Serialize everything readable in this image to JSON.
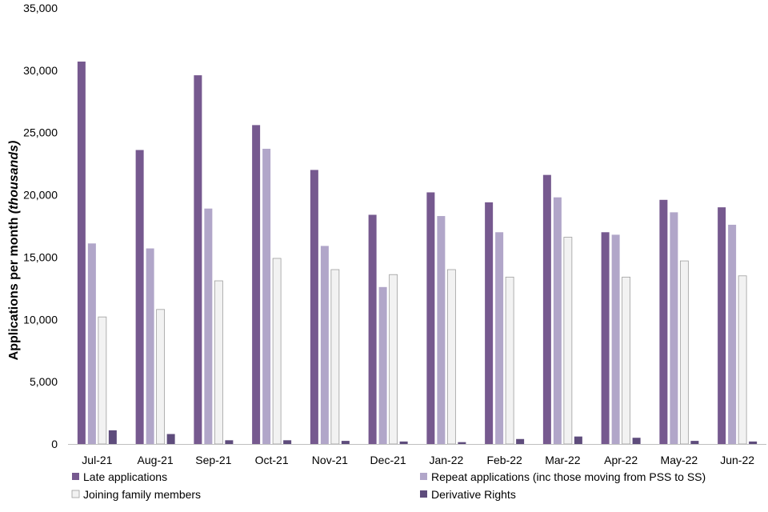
{
  "chart_data": {
    "type": "bar",
    "ylabel_main": "Applications per month ",
    "ylabel_unit": "(thousands)",
    "ylim": [
      0,
      35000
    ],
    "yticks": [
      "0",
      "5,000",
      "10,000",
      "15,000",
      "20,000",
      "25,000",
      "30,000",
      "35,000"
    ],
    "ytick_values": [
      0,
      5000,
      10000,
      15000,
      20000,
      25000,
      30000,
      35000
    ],
    "categories": [
      "Jul-21",
      "Aug-21",
      "Sep-21",
      "Oct-21",
      "Nov-21",
      "Dec-21",
      "Jan-22",
      "Feb-22",
      "Mar-22",
      "Apr-22",
      "May-22",
      "Jun-22"
    ],
    "legend_position": "bottom",
    "series": [
      {
        "name": "Late applications",
        "color": "#76598f",
        "values": [
          30700,
          23600,
          29600,
          25600,
          22000,
          18400,
          20200,
          19400,
          21600,
          17000,
          19600,
          19000
        ]
      },
      {
        "name": "Repeat applications (inc those moving from PSS to SS)",
        "color": "#b1a6c9",
        "values": [
          16100,
          15700,
          18900,
          23700,
          15900,
          12600,
          18300,
          17000,
          19800,
          16800,
          18600,
          17600
        ]
      },
      {
        "name": "Joining family members",
        "color": "#f2f2f2",
        "values": [
          10200,
          10800,
          13100,
          14900,
          14000,
          13600,
          14000,
          13400,
          16600,
          13400,
          14700,
          13500
        ]
      },
      {
        "name": "Derivative Rights",
        "color": "#5e4c7c",
        "values": [
          1100,
          800,
          300,
          300,
          250,
          200,
          150,
          400,
          600,
          500,
          250,
          200
        ]
      }
    ]
  }
}
